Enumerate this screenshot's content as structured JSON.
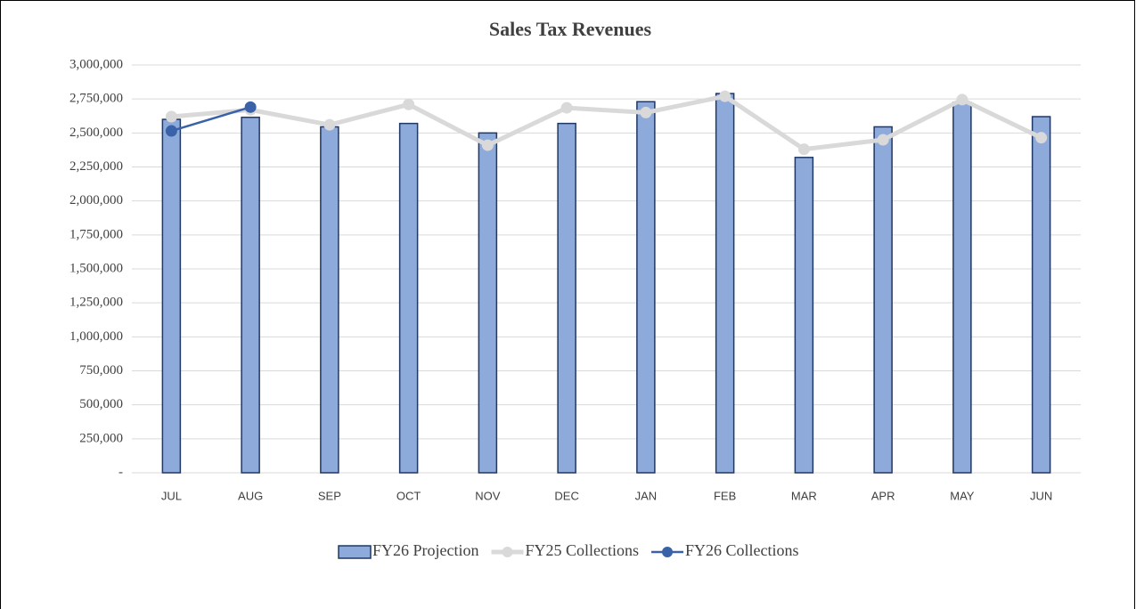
{
  "chart_data": {
    "type": "bar-line",
    "title": "Sales Tax Revenues",
    "categories": [
      "JUL",
      "AUG",
      "SEP",
      "OCT",
      "NOV",
      "DEC",
      "JAN",
      "FEB",
      "MAR",
      "APR",
      "MAY",
      "JUN"
    ],
    "series": [
      {
        "name": "FY26 Projection",
        "type": "bar",
        "color": "#8eaadb",
        "values": [
          2600000,
          2615000,
          2545000,
          2570000,
          2500000,
          2570000,
          2730000,
          2790000,
          2320000,
          2545000,
          2725000,
          2620000
        ]
      },
      {
        "name": "FY25 Collections",
        "type": "line",
        "color": "#d9d9d9",
        "values": [
          2620000,
          2670000,
          2560000,
          2710000,
          2410000,
          2685000,
          2650000,
          2770000,
          2380000,
          2450000,
          2745000,
          2465000
        ]
      },
      {
        "name": "FY26 Collections",
        "type": "line",
        "color": "#3a62a8",
        "values": [
          2515000,
          2690000,
          null,
          null,
          null,
          null,
          null,
          null,
          null,
          null,
          null,
          null
        ]
      }
    ],
    "ylim": [
      0,
      3000000
    ],
    "yticks": [
      {
        "value": 0,
        "label": "-"
      },
      {
        "value": 250000,
        "label": "250,000"
      },
      {
        "value": 500000,
        "label": "500,000"
      },
      {
        "value": 750000,
        "label": "750,000"
      },
      {
        "value": 1000000,
        "label": "1,000,000"
      },
      {
        "value": 1250000,
        "label": "1,250,000"
      },
      {
        "value": 1500000,
        "label": "1,500,000"
      },
      {
        "value": 1750000,
        "label": "1,750,000"
      },
      {
        "value": 2000000,
        "label": "2,000,000"
      },
      {
        "value": 2250000,
        "label": "2,250,000"
      },
      {
        "value": 2500000,
        "label": "2,500,000"
      },
      {
        "value": 2750000,
        "label": "2,750,000"
      },
      {
        "value": 3000000,
        "label": "3,000,000"
      }
    ],
    "grid": true,
    "legend": "bottom"
  }
}
